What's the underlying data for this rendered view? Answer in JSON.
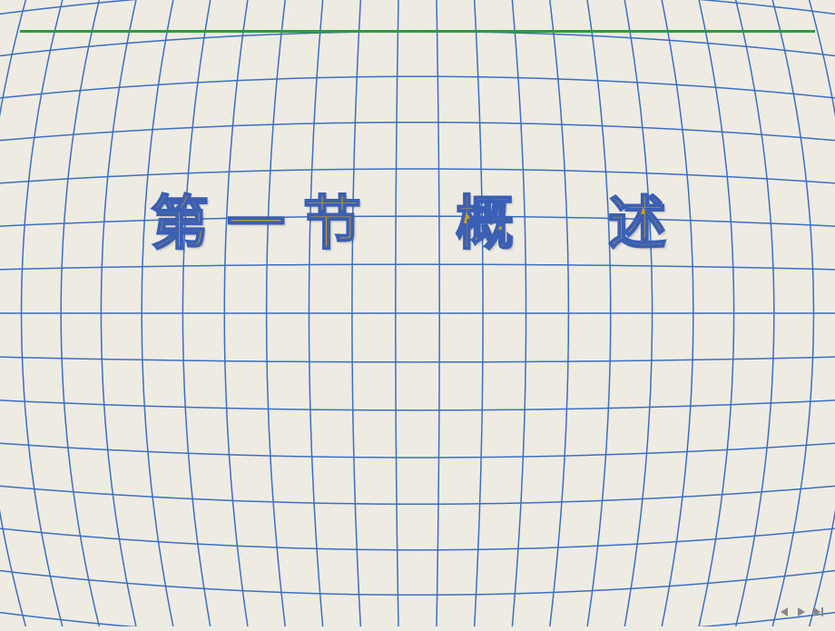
{
  "slide": {
    "title": "第一节　概　述",
    "title_color": "#d4a017",
    "title_stroke_color": "#3a5fb5",
    "title_fontsize": 64,
    "background_color": "#f0ede4",
    "top_bar_color": "#2a9d3f",
    "grid": {
      "line_color": "#3a6fc5",
      "line_width": 1.5,
      "vertical_count": 21,
      "horizontal_count": 14,
      "sphere_bulge": 0.35
    }
  },
  "nav": {
    "prev_icon": "prev",
    "play_icon": "play",
    "next_icon": "next",
    "last_icon": "last",
    "icon_color": "#888888"
  }
}
